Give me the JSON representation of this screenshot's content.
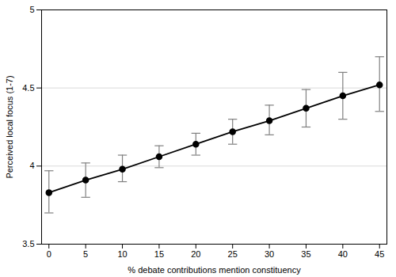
{
  "chart_data": {
    "type": "line",
    "x_label": "% debate contributions mention constituency",
    "y_label": "Perceived local focus (1-7)",
    "x": [
      0,
      5,
      10,
      15,
      20,
      25,
      30,
      35,
      40,
      45
    ],
    "series": [
      {
        "name": "Perceived local focus",
        "color": "#000000",
        "marker": "circle",
        "line_style": "solid",
        "values": [
          3.83,
          3.91,
          3.98,
          4.06,
          4.14,
          4.22,
          4.29,
          4.37,
          4.45,
          4.52
        ],
        "error_lower": [
          3.7,
          3.8,
          3.9,
          3.99,
          4.07,
          4.14,
          4.2,
          4.25,
          4.3,
          4.35
        ],
        "error_upper": [
          3.97,
          4.02,
          4.07,
          4.13,
          4.21,
          4.3,
          4.39,
          4.49,
          4.6,
          4.7
        ],
        "error_color": "#808080"
      }
    ],
    "xlim": [
      -1,
      46
    ],
    "xticks": [
      0,
      5,
      10,
      15,
      20,
      25,
      30,
      35,
      40,
      45
    ],
    "ylim": [
      3.5,
      5
    ],
    "yticks": [
      3.5,
      4,
      4.5,
      5
    ],
    "grid": "y"
  }
}
